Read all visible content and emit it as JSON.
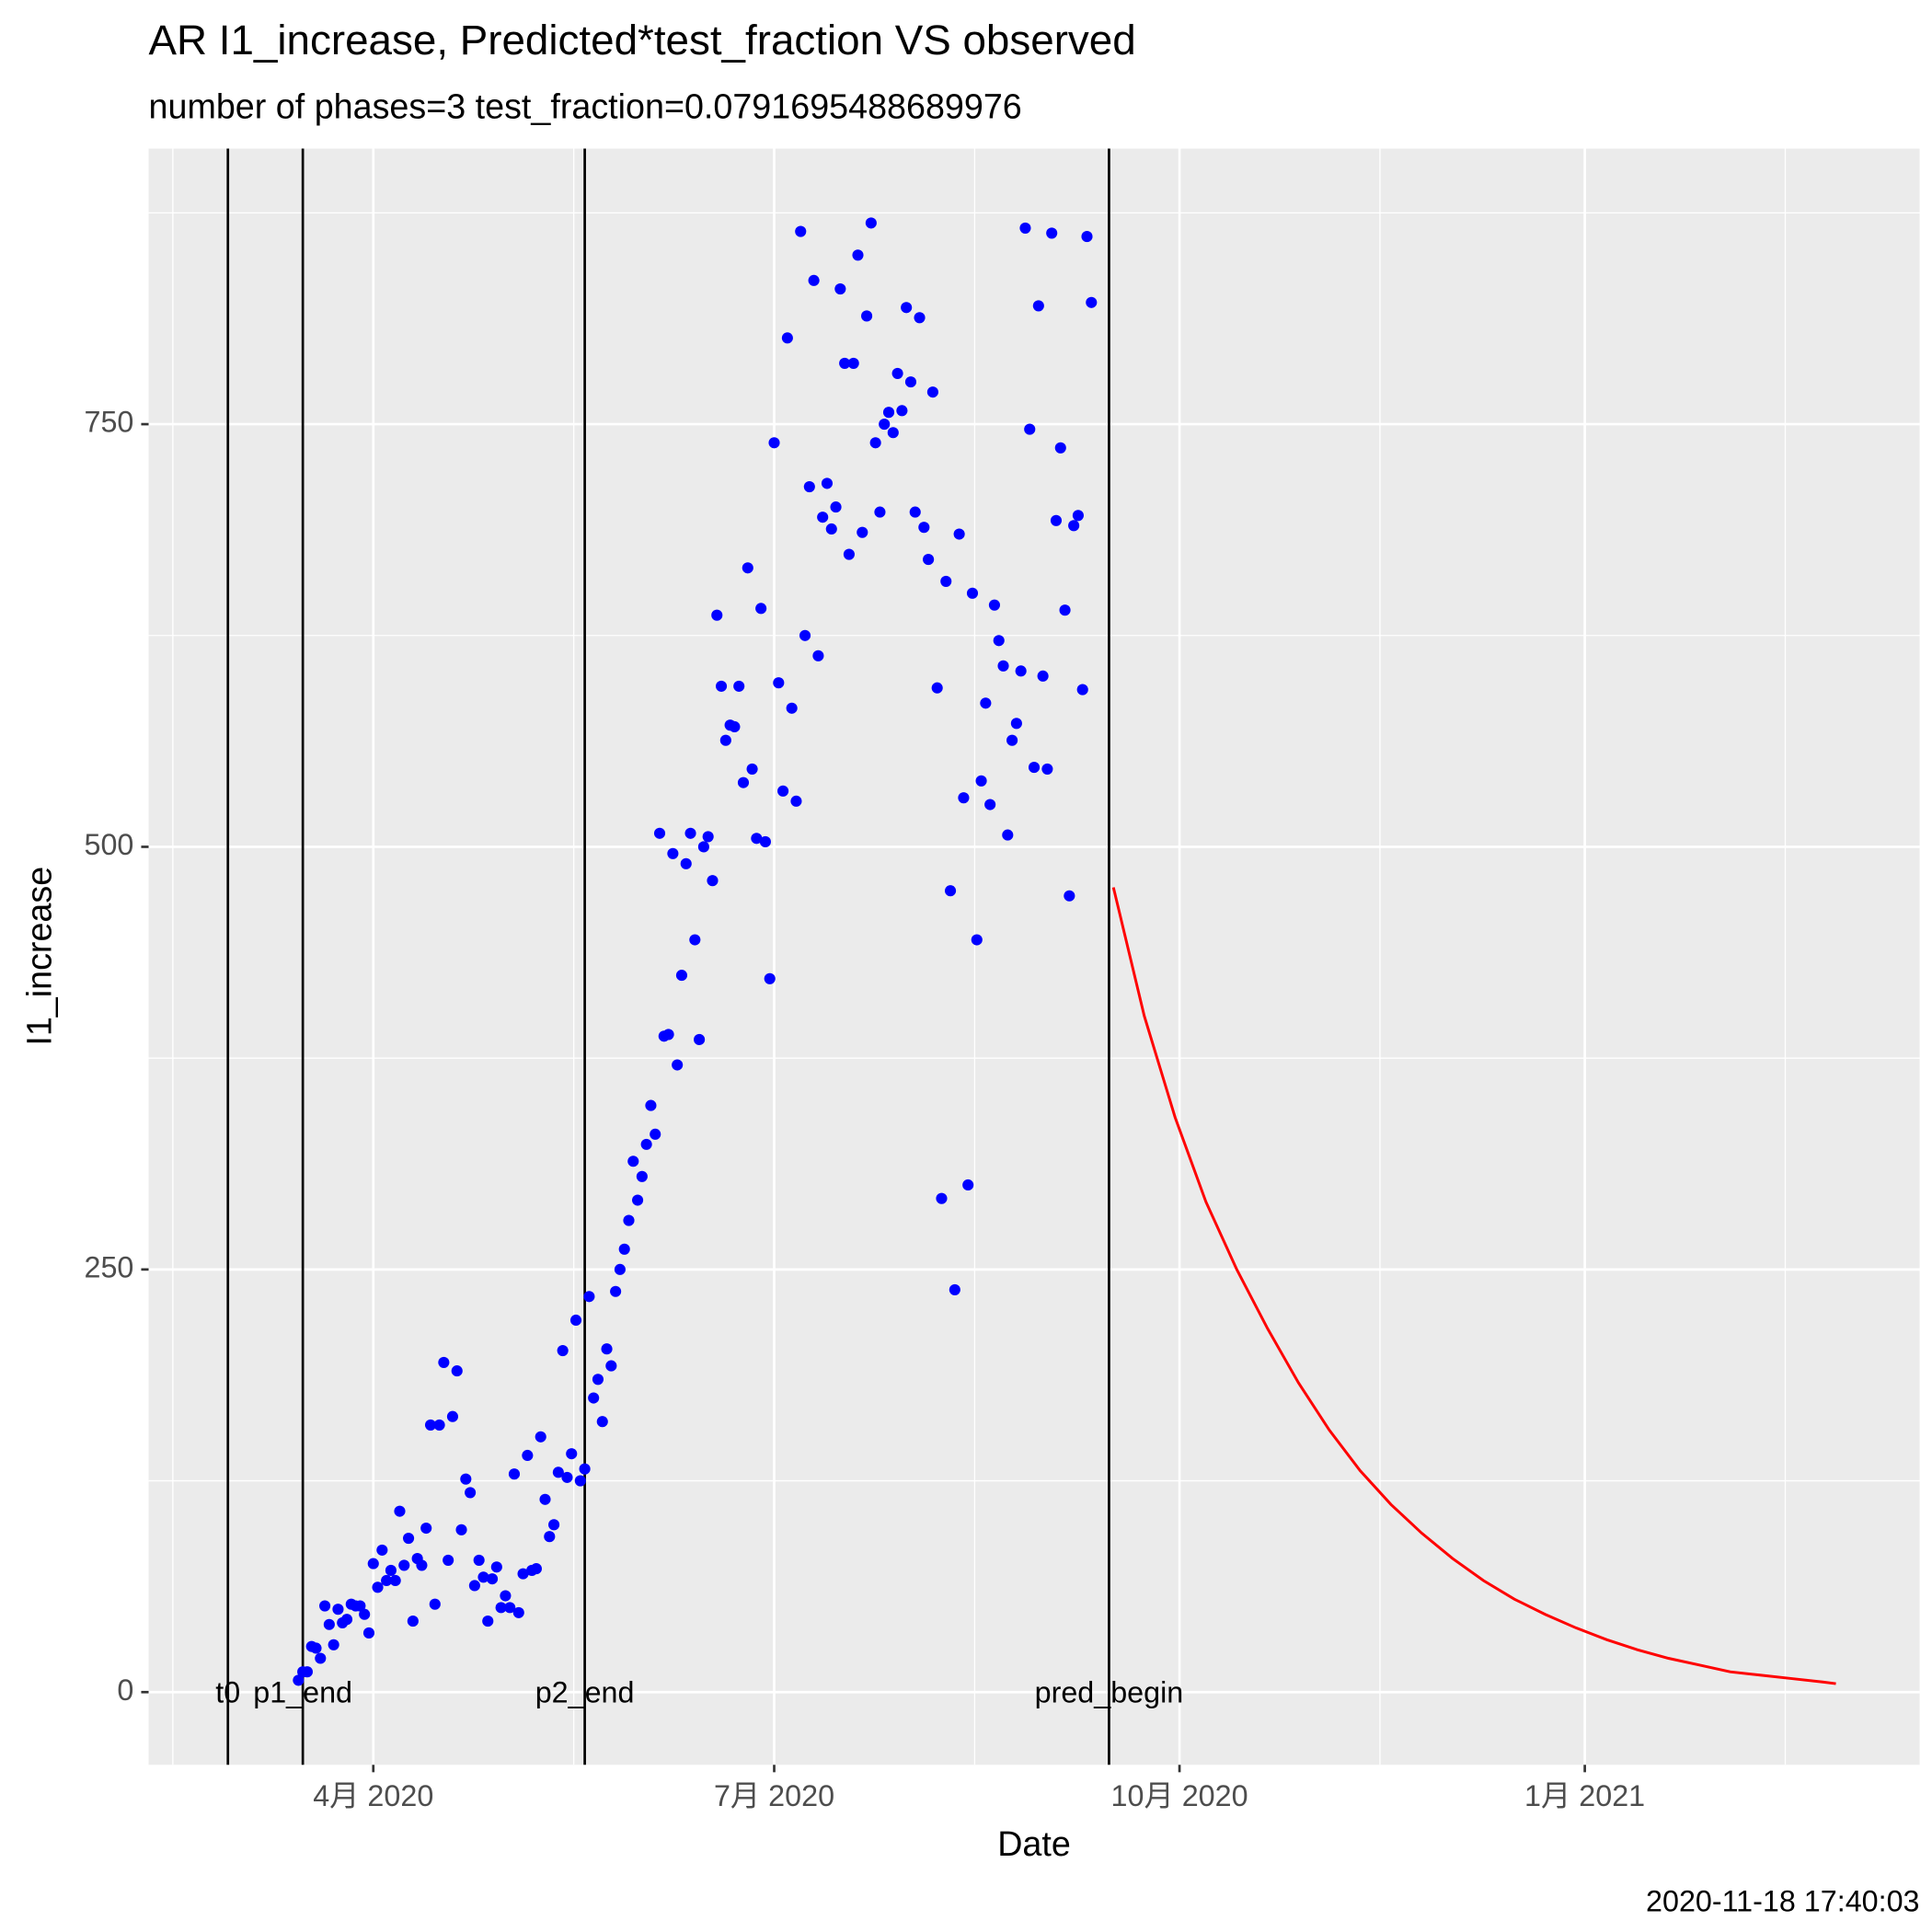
{
  "chart_data": {
    "type": "scatter",
    "title": "AR I1_increase, Predicted*test_fraction VS observed",
    "subtitle": "number of phases=3   test_fraction=0.0791695488689976",
    "x_label": "Date",
    "y_label": "I1_increase",
    "caption": "2020-11-18 17:40:03",
    "color": "#0000ff",
    "grid": true,
    "xlim": [
      "2020-02-10",
      "2021-03-18"
    ],
    "ylim": [
      -43,
      913
    ],
    "xticks": [
      {
        "value": "2020-04-01",
        "label": "4月 2020"
      },
      {
        "value": "2020-07-01",
        "label": "7月 2020"
      },
      {
        "value": "2020-10-01",
        "label": "10月 2020"
      },
      {
        "value": "2021-01-01",
        "label": "1月 2021"
      }
    ],
    "yticks": [
      0,
      250,
      500,
      750
    ],
    "x": [
      "2020-03-15",
      "2020-03-16",
      "2020-03-17",
      "2020-03-18",
      "2020-03-19",
      "2020-03-20",
      "2020-03-21",
      "2020-03-22",
      "2020-03-23",
      "2020-03-24",
      "2020-03-25",
      "2020-03-26",
      "2020-03-27",
      "2020-03-28",
      "2020-03-29",
      "2020-03-30",
      "2020-03-31",
      "2020-04-01",
      "2020-04-02",
      "2020-04-03",
      "2020-04-04",
      "2020-04-05",
      "2020-04-06",
      "2020-04-07",
      "2020-04-08",
      "2020-04-09",
      "2020-04-10",
      "2020-04-11",
      "2020-04-12",
      "2020-04-13",
      "2020-04-14",
      "2020-04-15",
      "2020-04-16",
      "2020-04-17",
      "2020-04-18",
      "2020-04-19",
      "2020-04-20",
      "2020-04-21",
      "2020-04-22",
      "2020-04-23",
      "2020-04-24",
      "2020-04-25",
      "2020-04-26",
      "2020-04-27",
      "2020-04-28",
      "2020-04-29",
      "2020-04-30",
      "2020-05-01",
      "2020-05-02",
      "2020-05-03",
      "2020-05-04",
      "2020-05-05",
      "2020-05-06",
      "2020-05-07",
      "2020-05-08",
      "2020-05-09",
      "2020-05-10",
      "2020-05-11",
      "2020-05-12",
      "2020-05-13",
      "2020-05-14",
      "2020-05-15",
      "2020-05-16",
      "2020-05-17",
      "2020-05-18",
      "2020-05-19",
      "2020-05-20",
      "2020-05-21",
      "2020-05-22",
      "2020-05-23",
      "2020-05-24",
      "2020-05-25",
      "2020-05-26",
      "2020-05-27",
      "2020-05-28",
      "2020-05-29",
      "2020-05-30",
      "2020-05-31",
      "2020-06-01",
      "2020-06-02",
      "2020-06-03",
      "2020-06-04",
      "2020-06-05",
      "2020-06-06",
      "2020-06-07",
      "2020-06-08",
      "2020-06-09",
      "2020-06-10",
      "2020-06-11",
      "2020-06-12",
      "2020-06-13",
      "2020-06-14",
      "2020-06-15",
      "2020-06-16",
      "2020-06-17",
      "2020-06-18",
      "2020-06-19",
      "2020-06-20",
      "2020-06-21",
      "2020-06-22",
      "2020-06-23",
      "2020-06-24",
      "2020-06-25",
      "2020-06-26",
      "2020-06-27",
      "2020-06-28",
      "2020-06-29",
      "2020-06-30",
      "2020-07-01",
      "2020-07-02",
      "2020-07-03",
      "2020-07-04",
      "2020-07-05",
      "2020-07-06",
      "2020-07-07",
      "2020-07-08",
      "2020-07-09",
      "2020-07-10",
      "2020-07-11",
      "2020-07-12",
      "2020-07-13",
      "2020-07-14",
      "2020-07-15",
      "2020-07-16",
      "2020-07-17",
      "2020-07-18",
      "2020-07-19",
      "2020-07-20",
      "2020-07-21",
      "2020-07-22",
      "2020-07-23",
      "2020-07-24",
      "2020-07-25",
      "2020-07-26",
      "2020-07-27",
      "2020-07-28",
      "2020-07-29",
      "2020-07-30",
      "2020-07-31",
      "2020-08-01",
      "2020-08-02",
      "2020-08-03",
      "2020-08-04",
      "2020-08-05",
      "2020-08-06",
      "2020-08-07",
      "2020-08-08",
      "2020-08-09",
      "2020-08-10",
      "2020-08-11",
      "2020-08-12",
      "2020-08-13",
      "2020-08-14",
      "2020-08-15",
      "2020-08-16",
      "2020-08-17",
      "2020-08-18",
      "2020-08-19",
      "2020-08-20",
      "2020-08-21",
      "2020-08-22",
      "2020-08-23",
      "2020-08-24",
      "2020-08-25",
      "2020-08-26",
      "2020-08-27",
      "2020-08-28",
      "2020-08-29",
      "2020-08-30",
      "2020-08-31",
      "2020-09-01",
      "2020-09-02",
      "2020-09-03",
      "2020-09-04",
      "2020-09-05",
      "2020-09-06",
      "2020-09-07",
      "2020-09-08",
      "2020-09-09",
      "2020-09-10",
      "2020-09-11"
    ],
    "values": [
      7,
      12,
      12,
      27,
      26,
      20,
      51,
      40,
      28,
      49,
      41,
      43,
      52,
      51,
      51,
      46,
      35,
      76,
      62,
      84,
      66,
      72,
      66,
      107,
      75,
      91,
      42,
      79,
      75,
      97,
      158,
      52,
      158,
      195,
      78,
      163,
      190,
      96,
      126,
      118,
      63,
      78,
      68,
      42,
      67,
      74,
      50,
      57,
      50,
      129,
      47,
      70,
      140,
      72,
      73,
      151,
      114,
      92,
      99,
      130,
      202,
      127,
      141,
      220,
      125,
      132,
      234,
      174,
      185,
      160,
      203,
      193,
      237,
      250,
      262,
      279,
      314,
      291,
      305,
      324,
      347,
      330,
      508,
      388,
      389,
      496,
      371,
      424,
      490,
      508,
      445,
      386,
      500,
      506,
      480,
      637,
      595,
      563,
      572,
      571,
      595,
      538,
      665,
      546,
      505,
      641,
      503,
      422,
      739,
      597,
      533,
      801,
      582,
      527,
      864,
      625,
      713,
      835,
      613,
      695,
      715,
      688,
      701,
      830,
      786,
      673,
      786,
      850,
      686,
      814,
      869,
      739,
      698,
      750,
      757,
      745,
      780,
      758,
      819,
      775,
      698,
      813,
      689,
      670,
      769,
      594,
      292,
      657,
      474,
      238,
      685,
      529,
      300,
      650,
      445,
      539,
      585,
      525,
      643,
      622,
      607,
      507,
      563,
      573,
      604,
      866,
      747,
      547,
      820,
      601,
      546,
      863,
      693,
      736,
      640,
      471,
      690,
      696,
      593,
      861,
      822
    ],
    "line": {
      "color": "#ff0000",
      "x": [
        "2020-09-16",
        "2020-09-23",
        "2020-09-30",
        "2020-10-07",
        "2020-10-14",
        "2020-10-21",
        "2020-10-28",
        "2020-11-04",
        "2020-11-11",
        "2020-11-18",
        "2020-11-25",
        "2020-12-02",
        "2020-12-09",
        "2020-12-16",
        "2020-12-23",
        "2020-12-30",
        "2021-01-06",
        "2021-01-13",
        "2021-01-20",
        "2021-01-27",
        "2021-02-03",
        "2021-02-10",
        "2021-02-17",
        "2021-02-24",
        "2021-02-27"
      ],
      "values": [
        476,
        400,
        340,
        290,
        250,
        215,
        183,
        155,
        131,
        111,
        94,
        79,
        66,
        55,
        46,
        38,
        31,
        25,
        20,
        16,
        12,
        10,
        8,
        6,
        5
      ]
    },
    "vlines": [
      {
        "x": "2020-02-28",
        "label": "t0"
      },
      {
        "x": "2020-03-16",
        "label": "p1_end"
      },
      {
        "x": "2020-05-19",
        "label": "p2_end"
      },
      {
        "x": "2020-09-15",
        "label": "pred_begin"
      }
    ]
  }
}
